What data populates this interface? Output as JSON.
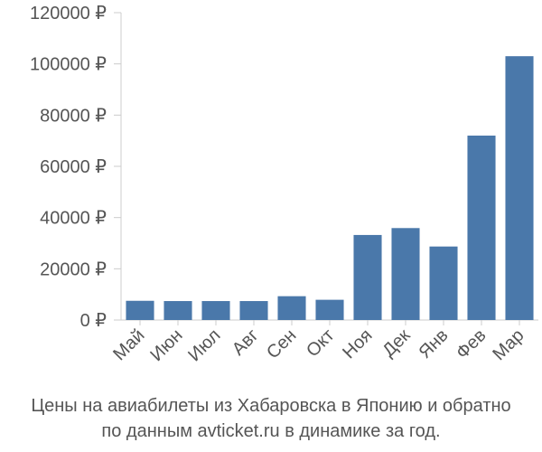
{
  "chart_data": {
    "type": "bar",
    "categories": [
      "Май",
      "Июн",
      "Июл",
      "Авг",
      "Сен",
      "Окт",
      "Ноя",
      "Дек",
      "Янв",
      "Фев",
      "Мар"
    ],
    "values": [
      7500,
      7400,
      7400,
      7400,
      9300,
      7900,
      33200,
      35900,
      28700,
      72000,
      103000
    ],
    "title": "",
    "xlabel": "",
    "ylabel": "",
    "ylim": [
      0,
      120000
    ],
    "yticks": [
      0,
      20000,
      40000,
      60000,
      80000,
      100000,
      120000
    ],
    "ytick_labels": [
      "0 ₽",
      "20000 ₽",
      "40000 ₽",
      "60000 ₽",
      "80000 ₽",
      "100000 ₽",
      "120000 ₽"
    ],
    "grid": false,
    "bar_color": "#4a78aa",
    "caption": {
      "line1": "Цены на авиабилеты из Хабаровска в Японию и обратно",
      "line2": "по данным avticket.ru в динамике за год."
    }
  }
}
